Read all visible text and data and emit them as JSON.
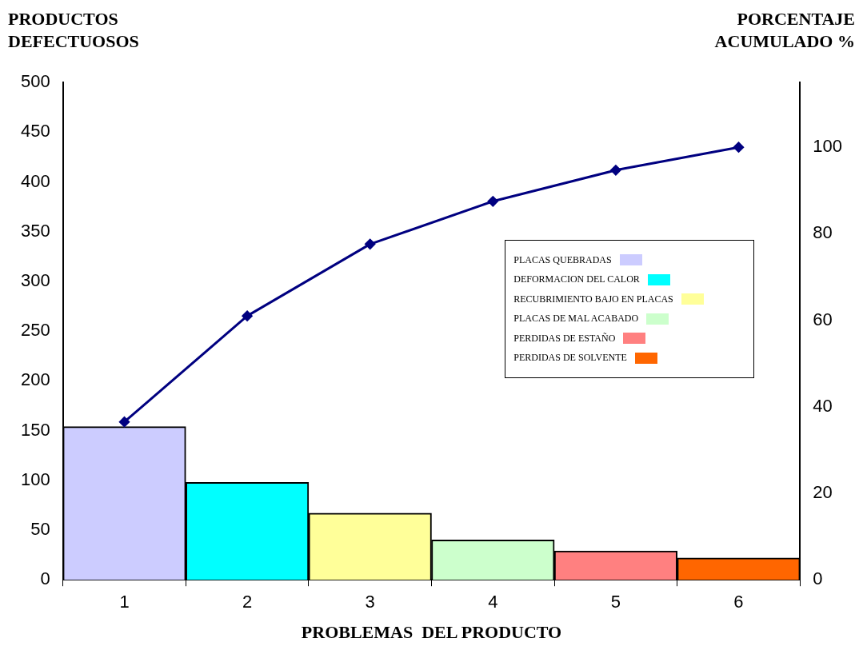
{
  "chart_data": {
    "type": "bar",
    "xlabel": "PROBLEMAS  DEL PRODUCTO",
    "ylabel": "PRODUCTOS DEFECTUOSOS",
    "y2label": "PORCENTAJE ACUMULADO %",
    "categories": [
      "1",
      "2",
      "3",
      "4",
      "5",
      "6"
    ],
    "stacked": true,
    "legend": "right",
    "grid": false,
    "marker": "diamond",
    "line_style": "solid",
    "ylim": [
      0,
      500
    ],
    "yticks": [
      0,
      50,
      100,
      150,
      200,
      250,
      300,
      350,
      400,
      450,
      500
    ],
    "y2lim": [
      0,
      115
    ],
    "y2ticks": [
      0,
      20,
      40,
      60,
      80,
      100
    ],
    "series": [
      {
        "name": "PLACAS QUEBRADAS",
        "color": "#ccccff",
        "values": [
          154,
          null,
          null,
          null,
          null,
          null
        ]
      },
      {
        "name": "DEFORMACION DEL CALOR",
        "color": "#00ffff",
        "values": [
          null,
          98,
          null,
          null,
          null,
          null
        ]
      },
      {
        "name": "RECUBRIMIENTO BAJO EN PLACAS",
        "color": "#ffff99",
        "values": [
          null,
          null,
          67,
          null,
          null,
          null
        ]
      },
      {
        "name": "PLACAS DE MAL ACABADO",
        "color": "#ccffcc",
        "values": [
          null,
          null,
          null,
          40,
          null,
          null
        ]
      },
      {
        "name": "PERDIDAS DE ESTAÑO",
        "color": "#ff8080",
        "values": [
          null,
          null,
          null,
          null,
          29,
          null
        ]
      },
      {
        "name": "PERDIDAS DE SOLVENTE",
        "color": "#ff6600",
        "values": [
          null,
          null,
          null,
          null,
          null,
          22
        ]
      },
      {
        "type": "line",
        "axis": "y2",
        "color": "#000080",
        "values": [
          36.5,
          61,
          77.6,
          87.5,
          94.7,
          100
        ]
      }
    ]
  }
}
